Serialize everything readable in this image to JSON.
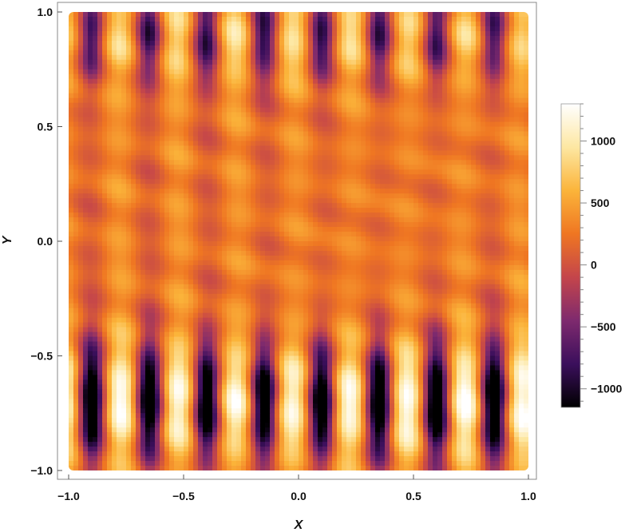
{
  "chart_data": {
    "type": "heatmap",
    "title": "",
    "xlabel": "X",
    "ylabel": "Y",
    "xlim": [
      -1.0,
      1.0
    ],
    "ylim": [
      -1.0,
      1.0
    ],
    "x_ticks": [
      "−1.0",
      "−0.5",
      "0.0",
      "0.5",
      "1.0"
    ],
    "x_tick_values": [
      -1.0,
      -0.5,
      0.0,
      0.5,
      1.0
    ],
    "y_ticks": [
      "−1.0",
      "−0.5",
      "0.0",
      "0.5",
      "1.0"
    ],
    "y_tick_values": [
      -1.0,
      -0.5,
      0.0,
      0.5,
      1.0
    ],
    "colorbar": {
      "range": [
        -1150,
        1300
      ],
      "ticks": [
        "−1000",
        "−500",
        "0",
        "500",
        "1000"
      ],
      "tick_values": [
        -1000,
        -500,
        0,
        500,
        1000
      ],
      "colormap": "sunset",
      "stops": [
        "#000000",
        "#3b0f5c",
        "#7e2a6e",
        "#c4454b",
        "#ef7622",
        "#fbb43a",
        "#fde7a2",
        "#ffffff"
      ]
    },
    "description_values": {
      "dark_stripe_x": [
        -0.9,
        -0.65,
        -0.4,
        -0.15,
        0.1,
        0.35,
        0.6,
        0.85
      ],
      "dark_stripe_value": -1100,
      "bright_stripe_value": 1250
    },
    "grid": false,
    "frame": true
  }
}
